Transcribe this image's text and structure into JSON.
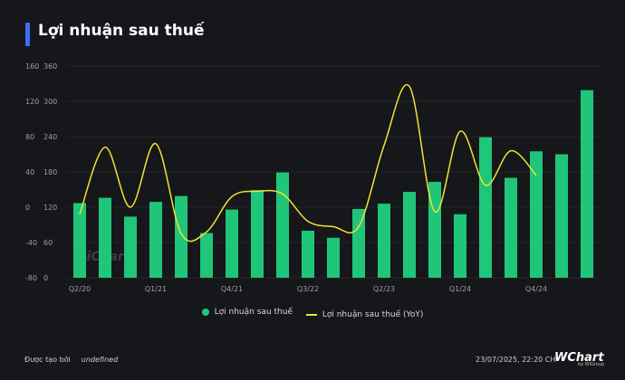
{
  "header": {
    "title": "Lợi nhuận sau thuế"
  },
  "legend": {
    "bar_label": "Lợi nhuận sau thuế",
    "line_label": "Lợi nhuận sau thuế (YoY)"
  },
  "footer": {
    "created_by_label": "Được tạo bởi",
    "created_by_value": "undefined",
    "timestamp": "23/07/2025, 22:20 CH"
  },
  "brand": {
    "name": "WChart",
    "sub": "by WiGroup",
    "watermark": "WiChart"
  },
  "colors": {
    "bar": "#1fc67a",
    "line": "#f2e232",
    "accent": "#3d6df2"
  },
  "chart_data": {
    "type": "bar",
    "title": "Lợi nhuận sau thuế",
    "categories": [
      "Q2/20",
      "Q3/20",
      "Q4/20",
      "Q1/21",
      "Q2/21",
      "Q3/21",
      "Q4/21",
      "Q1/22",
      "Q2/22",
      "Q3/22",
      "Q4/22",
      "Q1/23",
      "Q2/23",
      "Q3/23",
      "Q4/23",
      "Q1/24",
      "Q2/24",
      "Q3/24",
      "Q4/24",
      "Q1/25",
      "Q2/25"
    ],
    "x_tick_labels": [
      "Q2/20",
      "",
      "",
      "Q1/21",
      "",
      "",
      "Q4/21",
      "",
      "",
      "Q3/22",
      "",
      "",
      "Q2/23",
      "",
      "",
      "Q1/24",
      "",
      "",
      "Q4/24",
      "",
      ""
    ],
    "left_axis": {
      "ticks": [
        -80,
        -40,
        0,
        40,
        80,
        120,
        160
      ],
      "ylim": [
        -80,
        160
      ]
    },
    "right_axis": {
      "ticks": [
        0,
        60,
        120,
        180,
        240,
        300,
        360
      ],
      "ylim": [
        0,
        360
      ]
    },
    "series": [
      {
        "name": "Lợi nhuận sau thuế",
        "type": "bar",
        "axis": "right",
        "values": [
          127,
          136,
          104,
          129,
          139,
          76,
          116,
          149,
          179,
          80,
          68,
          117,
          126,
          146,
          163,
          108,
          239,
          170,
          215,
          210,
          319
        ]
      },
      {
        "name": "Lợi nhuận sau thuế (YoY)",
        "type": "line",
        "axis": "left",
        "values": [
          -8,
          68,
          0,
          72,
          -30,
          -28,
          12,
          18,
          15,
          -16,
          -22,
          -22,
          70,
          137,
          -5,
          86,
          25,
          64,
          36,
          null,
          null
        ]
      }
    ]
  }
}
